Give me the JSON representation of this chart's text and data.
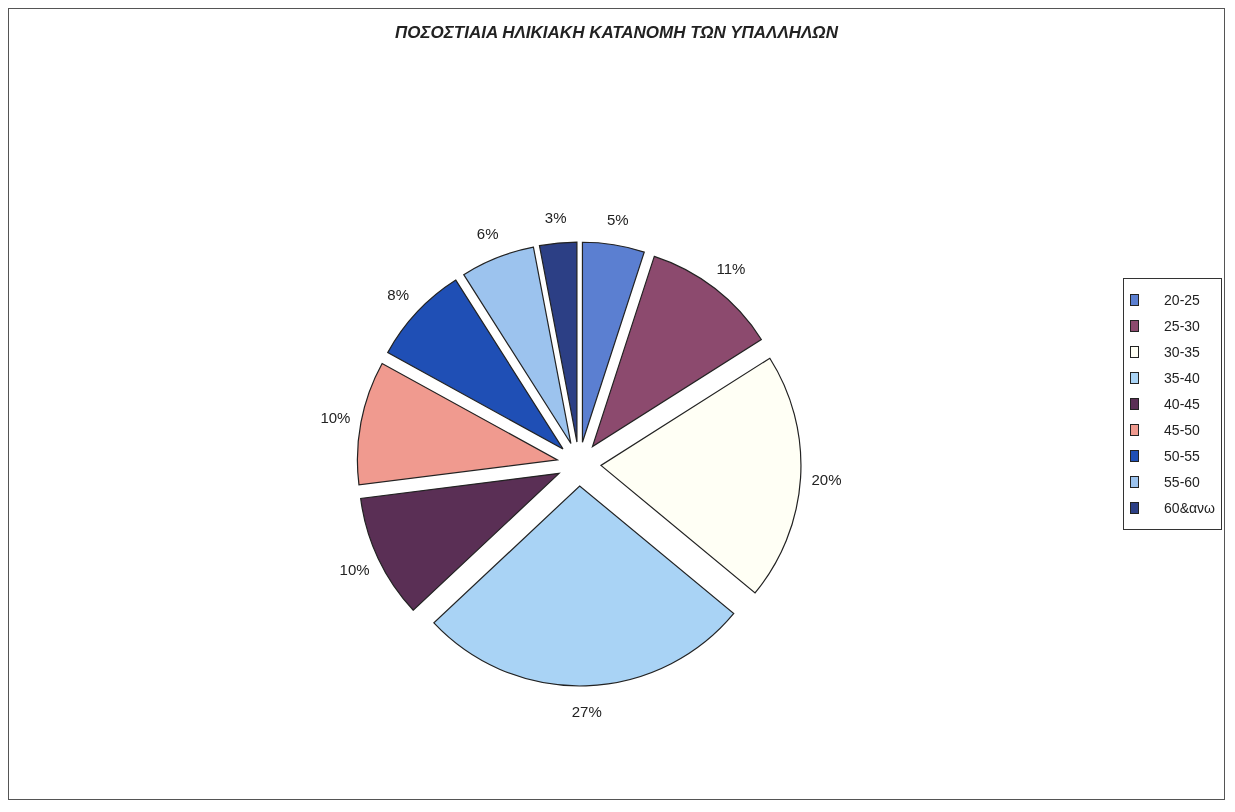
{
  "chart_data": {
    "type": "pie",
    "title": "ΠΟΣΟΣΤΙΑΙΑ ΗΛΙΚΙΑΚΗ ΚΑΤΑΝΟΜΗ ΤΩΝ ΥΠΑΛΛΗΛΩΝ",
    "categories": [
      "20-25",
      "25-30",
      "30-35",
      "35-40",
      "40-45",
      "45-50",
      "50-55",
      "55-60",
      "60&ανω"
    ],
    "values": [
      5,
      11,
      20,
      27,
      10,
      10,
      8,
      6,
      3
    ],
    "colors": [
      "#5b7fd1",
      "#8c4a6e",
      "#fffff5",
      "#a9d3f5",
      "#5a2f55",
      "#f09a8f",
      "#1f4fb5",
      "#9cc3ee",
      "#2c3f85"
    ],
    "value_labels": [
      "5%",
      "11%",
      "20%",
      "27%",
      "10%",
      "10%",
      "8%",
      "6%",
      "3%"
    ],
    "legend": "right"
  }
}
